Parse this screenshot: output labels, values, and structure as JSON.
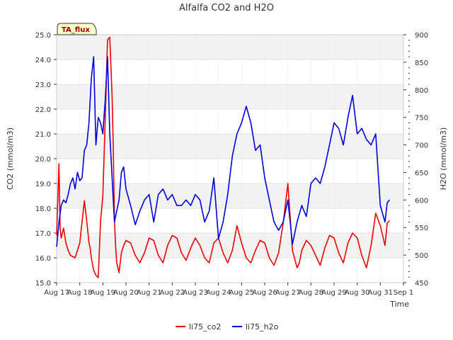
{
  "chart_data": {
    "type": "line",
    "title": "Alfalfa CO2 and H2O",
    "xlabel": "Time",
    "ylabel": "CO2 (mmol/m3)",
    "y2label": "H2O (mmol/m3)",
    "badge": "TA_flux",
    "x_ticks": [
      "Aug 17",
      "Aug 18",
      "Aug 19",
      "Aug 20",
      "Aug 21",
      "Aug 22",
      "Aug 23",
      "Aug 24",
      "Aug 25",
      "Aug 26",
      "Aug 27",
      "Aug 28",
      "Aug 29",
      "Aug 30",
      "Aug 31",
      "Sep 1"
    ],
    "xlim": [
      0,
      15
    ],
    "ylim": [
      15.0,
      25.0
    ],
    "y_ticks": [
      "15.0",
      "16.0",
      "17.0",
      "18.0",
      "19.0",
      "20.0",
      "21.0",
      "22.0",
      "23.0",
      "24.0",
      "25.0"
    ],
    "y2lim": [
      450,
      900
    ],
    "y2_ticks": [
      "450",
      "500",
      "550",
      "600",
      "650",
      "700",
      "750",
      "800",
      "850",
      "900"
    ],
    "grid": true,
    "legend_position": "bottom-center",
    "series": [
      {
        "name": "li75_co2",
        "axis": "left",
        "color": "#ee0000",
        "x": [
          0.0,
          0.1,
          0.15,
          0.2,
          0.3,
          0.4,
          0.5,
          0.6,
          0.8,
          1.0,
          1.2,
          1.3,
          1.4,
          1.45,
          1.5,
          1.6,
          1.7,
          1.8,
          1.9,
          2.0,
          2.1,
          2.2,
          2.3,
          2.4,
          2.45,
          2.5,
          2.55,
          2.6,
          2.7,
          2.8,
          2.9,
          3.0,
          3.2,
          3.4,
          3.6,
          3.8,
          4.0,
          4.2,
          4.4,
          4.6,
          4.8,
          5.0,
          5.2,
          5.4,
          5.6,
          5.8,
          6.0,
          6.2,
          6.4,
          6.6,
          6.8,
          7.0,
          7.2,
          7.4,
          7.6,
          7.8,
          8.0,
          8.2,
          8.4,
          8.6,
          8.8,
          9.0,
          9.2,
          9.4,
          9.6,
          9.8,
          10.0,
          10.2,
          10.4,
          10.5,
          10.6,
          10.8,
          11.0,
          11.2,
          11.4,
          11.6,
          11.8,
          12.0,
          12.2,
          12.4,
          12.6,
          12.8,
          13.0,
          13.2,
          13.4,
          13.6,
          13.8,
          14.0,
          14.2,
          14.3,
          14.4
        ],
        "values": [
          16.9,
          19.8,
          17.2,
          16.8,
          17.2,
          16.6,
          16.3,
          16.1,
          16.0,
          16.6,
          18.3,
          17.5,
          16.6,
          16.4,
          16.0,
          15.5,
          15.3,
          15.2,
          17.5,
          18.5,
          21.5,
          24.8,
          24.9,
          22.5,
          20.5,
          17.5,
          16.5,
          15.8,
          15.4,
          16.2,
          16.5,
          16.7,
          16.6,
          16.1,
          15.8,
          16.2,
          16.8,
          16.7,
          16.1,
          15.8,
          16.5,
          16.9,
          16.8,
          16.2,
          15.9,
          16.4,
          16.8,
          16.5,
          16.0,
          15.8,
          16.6,
          16.8,
          16.2,
          15.8,
          16.3,
          17.3,
          16.6,
          16.0,
          15.8,
          16.3,
          16.7,
          16.6,
          16.0,
          15.7,
          16.2,
          17.4,
          19.0,
          16.3,
          15.6,
          15.8,
          16.3,
          16.7,
          16.5,
          16.1,
          15.7,
          16.4,
          16.9,
          16.8,
          16.2,
          15.8,
          16.6,
          17.0,
          16.8,
          16.1,
          15.6,
          16.5,
          17.8,
          17.3,
          16.5,
          17.4,
          17.5
        ]
      },
      {
        "name": "li75_h2o",
        "axis": "right",
        "color": "#0000dd",
        "x": [
          0.0,
          0.1,
          0.2,
          0.3,
          0.4,
          0.5,
          0.6,
          0.7,
          0.8,
          0.9,
          1.0,
          1.1,
          1.2,
          1.3,
          1.4,
          1.5,
          1.6,
          1.7,
          1.8,
          1.9,
          2.0,
          2.1,
          2.2,
          2.3,
          2.4,
          2.5,
          2.6,
          2.7,
          2.8,
          2.9,
          3.0,
          3.2,
          3.4,
          3.6,
          3.8,
          4.0,
          4.2,
          4.4,
          4.6,
          4.8,
          5.0,
          5.2,
          5.4,
          5.6,
          5.8,
          6.0,
          6.2,
          6.4,
          6.6,
          6.8,
          7.0,
          7.2,
          7.4,
          7.6,
          7.8,
          8.0,
          8.2,
          8.4,
          8.6,
          8.8,
          9.0,
          9.2,
          9.4,
          9.6,
          9.8,
          10.0,
          10.2,
          10.4,
          10.6,
          10.8,
          11.0,
          11.2,
          11.4,
          11.6,
          11.8,
          12.0,
          12.2,
          12.4,
          12.6,
          12.8,
          13.0,
          13.2,
          13.4,
          13.6,
          13.8,
          14.0,
          14.2,
          14.3,
          14.4
        ],
        "values": [
          515,
          560,
          590,
          600,
          595,
          610,
          630,
          640,
          620,
          650,
          635,
          640,
          690,
          700,
          740,
          820,
          860,
          700,
          750,
          740,
          720,
          780,
          860,
          720,
          640,
          560,
          580,
          600,
          650,
          660,
          620,
          590,
          555,
          580,
          600,
          610,
          560,
          610,
          620,
          600,
          610,
          590,
          590,
          600,
          590,
          610,
          600,
          560,
          580,
          640,
          530,
          560,
          610,
          680,
          720,
          740,
          770,
          740,
          690,
          700,
          640,
          600,
          560,
          545,
          560,
          600,
          520,
          560,
          590,
          570,
          630,
          640,
          630,
          660,
          700,
          740,
          730,
          700,
          750,
          790,
          720,
          730,
          710,
          700,
          720,
          590,
          560,
          595,
          600
        ]
      }
    ]
  }
}
